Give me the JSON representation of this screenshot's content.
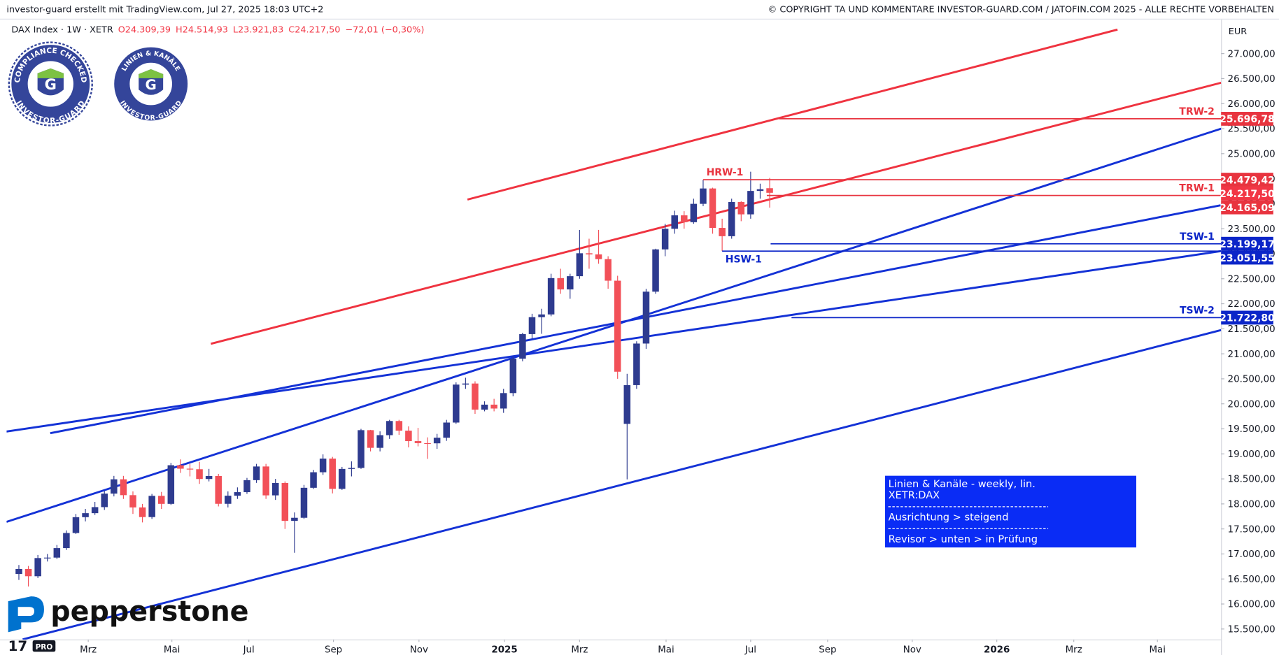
{
  "header": {
    "left": "investor-guard erstellt mit TradingView.com, Jul 27, 2025 18:03 UTC+2",
    "right": "© COPYRIGHT TA UND KOMMENTARE INVESTOR-GUARD.COM / JATOFIN.COM 2025 - ALLE RECHTE VORBEHALTEN"
  },
  "badges": [
    {
      "top": "COMPLIANCE CHECKED",
      "bottom": "INVESTOR-GUARD"
    },
    {
      "top": "LINIEN & KANÄLE",
      "bottom": "INVESTOR-GUARD"
    }
  ],
  "broker": "pepperstone",
  "info_box": [
    "Linien & Kanäle - weekly, lin.",
    "XETR:DAX",
    "Ausrichtung > steigend",
    "Revisor > unten > in Prüfung"
  ],
  "chart_data": {
    "type": "candlestick",
    "title": "DAX Index · 1W · XETR",
    "legend_values": [
      "O24.309,39",
      "H24.514,93",
      "L23.921,83",
      "C24.217,50",
      "−72,01 (−0,30%)"
    ],
    "currency": "EUR",
    "up_color": "#2e3b8f",
    "down_color": "#f25058",
    "grid": false,
    "open": [
      16600,
      16700,
      16555,
      16918,
      16927,
      17117,
      17419,
      17735,
      17815,
      17936,
      18206,
      18492,
      18175,
      17930,
      17737,
      18161,
      18001,
      18773,
      18704,
      18693,
      18498,
      18557,
      18002,
      18164,
      18235,
      18475,
      18748,
      18171,
      18418,
      17661,
      17723,
      18322,
      18633,
      18906,
      18301,
      18699,
      18720,
      19474,
      19121,
      19374,
      19657,
      19464,
      19255,
      19215,
      19211,
      19323,
      19626,
      20385,
      20406,
      19885,
      19984,
      19906,
      20215,
      20903,
      21394,
      21732,
      21787,
      22513,
      22287,
      22551,
      23009,
      22987,
      22892,
      22461,
      19600,
      20374,
      21205,
      22242,
      23087,
      23499,
      23767,
      23630,
      23997,
      24304,
      23516,
      23350,
      24033,
      23787,
      24255,
      24309.39
    ],
    "high": [
      16780,
      16760,
      16980,
      17000,
      17180,
      17470,
      17800,
      17900,
      18040,
      18260,
      18560,
      18560,
      18250,
      18000,
      18200,
      18240,
      18820,
      18890,
      18800,
      18840,
      18700,
      18600,
      18250,
      18330,
      18520,
      18800,
      18800,
      18500,
      18450,
      17830,
      18380,
      18680,
      18990,
      18940,
      18740,
      18850,
      19500,
      19480,
      19450,
      19680,
      19680,
      19550,
      19520,
      19330,
      19400,
      19680,
      20430,
      20522,
      20450,
      20050,
      20100,
      20300,
      20950,
      21420,
      21800,
      21900,
      22600,
      22700,
      22600,
      23475,
      23300,
      23476,
      22950,
      22560,
      20600,
      21250,
      22300,
      23100,
      23600,
      23860,
      23850,
      24100,
      24479.42,
      24320,
      23700,
      24100,
      24050,
      24639,
      24400,
      24514.93
    ],
    "low": [
      16480,
      16350,
      16520,
      16850,
      16900,
      17080,
      17400,
      17650,
      17780,
      17880,
      18150,
      18100,
      17800,
      17630,
      17700,
      17900,
      17980,
      18620,
      18550,
      18400,
      18450,
      17950,
      17930,
      18100,
      18200,
      18420,
      18100,
      18080,
      17500,
      17024,
      17700,
      18300,
      18580,
      18210,
      18280,
      18550,
      18700,
      19050,
      19050,
      19300,
      19380,
      19130,
      19150,
      18900,
      19100,
      19260,
      19600,
      20300,
      19800,
      19850,
      19850,
      19820,
      20150,
      20850,
      21300,
      21400,
      21750,
      22200,
      22100,
      22500,
      22700,
      22800,
      22300,
      20500,
      18490,
      20300,
      21100,
      22200,
      22950,
      23400,
      23500,
      23600,
      23950,
      23400,
      23051.55,
      23300,
      23650,
      23700,
      24100,
      23921.83
    ],
    "close": [
      16700,
      16555,
      16918,
      16927,
      17117,
      17419,
      17735,
      17815,
      17936,
      18206,
      18492,
      18175,
      17930,
      17737,
      18161,
      18001,
      18773,
      18704,
      18693,
      18498,
      18557,
      18002,
      18164,
      18235,
      18475,
      18748,
      18171,
      18418,
      17661,
      17723,
      18322,
      18633,
      18906,
      18301,
      18699,
      18720,
      19474,
      19121,
      19374,
      19657,
      19464,
      19255,
      19215,
      19211,
      19323,
      19626,
      20385,
      20406,
      19885,
      19984,
      19906,
      20215,
      20903,
      21394,
      21732,
      21787,
      22513,
      22287,
      22551,
      23009,
      22987,
      22892,
      22461,
      20642,
      20374,
      21205,
      22242,
      23087,
      23499,
      23767,
      23630,
      23997,
      24304,
      23516,
      23350,
      24033,
      23787,
      24255,
      24289,
      24217.5
    ],
    "xlim": [
      -1.3,
      126.5
    ],
    "xticks": [
      {
        "value": 7.3,
        "label": "Mrz"
      },
      {
        "value": 16.1,
        "label": "Mai"
      },
      {
        "value": 24.2,
        "label": "Jul"
      },
      {
        "value": 33.1,
        "label": "Sep"
      },
      {
        "value": 42.1,
        "label": "Nov"
      },
      {
        "value": 51.1,
        "label": "2025"
      },
      {
        "value": 59.0,
        "label": "Mrz"
      },
      {
        "value": 68.1,
        "label": "Mai"
      },
      {
        "value": 77.0,
        "label": "Jul"
      },
      {
        "value": 85.1,
        "label": "Sep"
      },
      {
        "value": 94.0,
        "label": "Nov"
      },
      {
        "value": 102.9,
        "label": "2026"
      },
      {
        "value": 111.0,
        "label": "Mrz"
      },
      {
        "value": 119.8,
        "label": "Mai"
      }
    ],
    "ylim": [
      15290,
      27680
    ],
    "yticks": [
      {
        "value": 15500,
        "label": "15.500,00"
      },
      {
        "value": 16000,
        "label": "16.000,00"
      },
      {
        "value": 16500,
        "label": "16.500,00"
      },
      {
        "value": 17000,
        "label": "17.000,00"
      },
      {
        "value": 17500,
        "label": "17.500,00"
      },
      {
        "value": 18000,
        "label": "18.000,00"
      },
      {
        "value": 18500,
        "label": "18.500,00"
      },
      {
        "value": 19000,
        "label": "19.000,00"
      },
      {
        "value": 19500,
        "label": "19.500,00"
      },
      {
        "value": 20000,
        "label": "20.000,00"
      },
      {
        "value": 20500,
        "label": "20.500,00"
      },
      {
        "value": 21000,
        "label": "21.000,00"
      },
      {
        "value": 21500,
        "label": "21.500,00"
      },
      {
        "value": 22000,
        "label": "22.000,00"
      },
      {
        "value": 22500,
        "label": "22.500,00"
      },
      {
        "value": 23000,
        "label": "23.000,00"
      },
      {
        "value": 23500,
        "label": "23.500,00"
      },
      {
        "value": 24000,
        "label": "24.000,00"
      },
      {
        "value": 24500,
        "label": "24.500,00"
      },
      {
        "value": 25000,
        "label": "25.000,00"
      },
      {
        "value": 25500,
        "label": "25.500,00"
      },
      {
        "value": 26000,
        "label": "26.000,00"
      },
      {
        "value": 26500,
        "label": "26.500,00"
      },
      {
        "value": 27000,
        "label": "27.000,00"
      }
    ],
    "trendlines": [
      {
        "color": "#ef3340",
        "x": [
          47.2,
          115.6
        ],
        "y": [
          24082,
          27480
        ]
      },
      {
        "color": "#ef3340",
        "x": [
          20.2,
          126.5
        ],
        "y": [
          21200,
          26417
        ]
      },
      {
        "color": "#1432d6",
        "x": [
          -1.3,
          126.5
        ],
        "y": [
          17642,
          25499
        ]
      },
      {
        "color": "#1432d6",
        "x": [
          3.3,
          126.5
        ],
        "y": [
          19413,
          23970
        ]
      },
      {
        "color": "#1432d6",
        "x": [
          -1.3,
          126.5
        ],
        "y": [
          19446,
          23052
        ]
      },
      {
        "color": "#1432d6",
        "x": [
          0.4,
          126.5
        ],
        "y": [
          15292,
          21474
        ]
      }
    ],
    "levels": [
      {
        "name": "TRW-2",
        "value": 25696.78,
        "label": "25.696,78",
        "color": "#e8343f",
        "start": 80.0
      },
      {
        "name": "HRW-1",
        "value": 24479.42,
        "label": "24.479,42",
        "color": "#e8343f",
        "start": 72
      },
      {
        "name": "TRW-1",
        "value": 24165.09,
        "label": "24.165,09",
        "color": "#e8343f",
        "start": 78.7
      },
      {
        "name": "TSW-1",
        "value": 23199.17,
        "label": "23.199,17",
        "color": "#0b25c8",
        "start": 79.1
      },
      {
        "name": "HSW-1",
        "value": 23051.55,
        "label": "23.051,55",
        "color": "#0b25c8",
        "start": 74
      },
      {
        "name": "TSW-2",
        "value": 21722.8,
        "label": "21.722,80",
        "color": "#0b25c8",
        "start": 81.3
      }
    ],
    "last_price": {
      "value": 24217.5,
      "label": "24.217,50",
      "color": "#f23645"
    }
  }
}
